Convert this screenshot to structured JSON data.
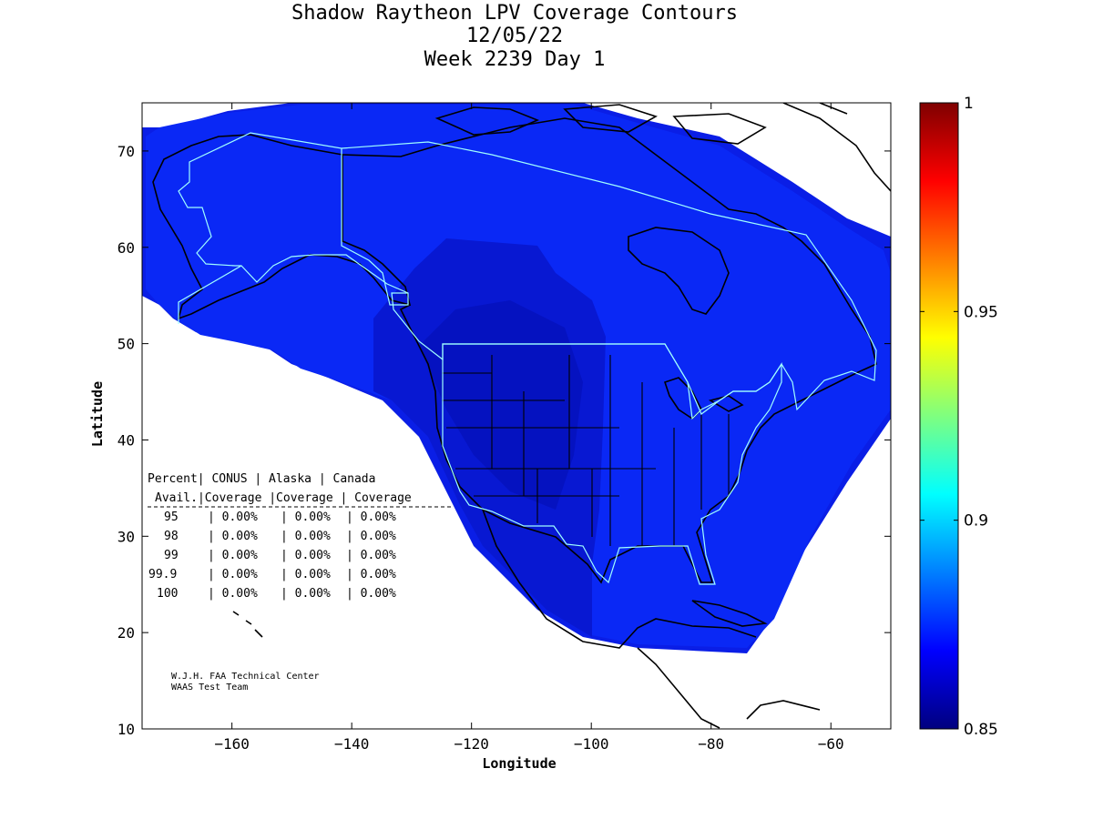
{
  "title": {
    "line1": "Shadow Raytheon LPV Coverage Contours",
    "line2": "12/05/22",
    "line3": "Week 2239 Day 1"
  },
  "axes": {
    "xlabel": "Longitude",
    "ylabel": "Latitude",
    "xlim": [
      -175,
      -50
    ],
    "ylim": [
      10,
      75
    ],
    "xticks": [
      -160,
      -140,
      -120,
      -100,
      -80,
      -60
    ],
    "yticks": [
      10,
      20,
      30,
      40,
      50,
      60,
      70
    ]
  },
  "colorbar": {
    "min": 0.85,
    "max": 1,
    "ticks": [
      {
        "value": 1,
        "label": "1"
      },
      {
        "value": 0.95,
        "label": "0.95"
      },
      {
        "value": 0.9,
        "label": "0.9"
      },
      {
        "value": 0.85,
        "label": "0.85"
      }
    ],
    "colors": [
      "#00007f",
      "#0000ff",
      "#007fff",
      "#00ffff",
      "#7fff7f",
      "#ffff00",
      "#ff7f00",
      "#ff0000",
      "#7f0000"
    ]
  },
  "coverage_colors": {
    "outer": "#0a1ee6",
    "main": "#0a28f5",
    "inner": "#0818d2",
    "core": "#0512c0",
    "boundary": "#a0ffff"
  },
  "stats_table": {
    "header1": [
      "Percent",
      "CONUS",
      "Alaska",
      "Canada"
    ],
    "header2": [
      "Avail.",
      "Coverage",
      "Coverage",
      "Coverage"
    ],
    "rows": [
      {
        "percent": "95",
        "conus": "0.00%",
        "alaska": "0.00%",
        "canada": "0.00%"
      },
      {
        "percent": "98",
        "conus": "0.00%",
        "alaska": "0.00%",
        "canada": "0.00%"
      },
      {
        "percent": "99",
        "conus": "0.00%",
        "alaska": "0.00%",
        "canada": "0.00%"
      },
      {
        "percent": "99.9",
        "conus": "0.00%",
        "alaska": "0.00%",
        "canada": "0.00%"
      },
      {
        "percent": "100",
        "conus": "0.00%",
        "alaska": "0.00%",
        "canada": "0.00%"
      }
    ]
  },
  "credits": {
    "line1": "W.J.H. FAA Technical Center",
    "line2": "WAAS Test Team"
  }
}
